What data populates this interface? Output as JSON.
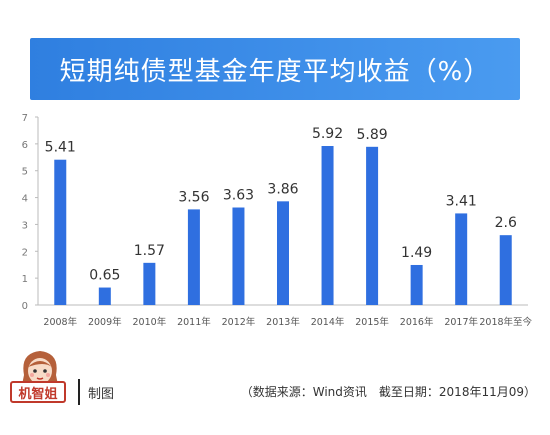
{
  "title": "短期纯债型基金年度平均收益（%）",
  "chart_data": {
    "type": "bar",
    "title": "短期纯债型基金年度平均收益（%）",
    "categories": [
      "2008年",
      "2009年",
      "2010年",
      "2011年",
      "2012年",
      "2013年",
      "2014年",
      "2015年",
      "2016年",
      "2017年",
      "2018年至今"
    ],
    "values": [
      5.41,
      0.65,
      1.57,
      3.56,
      3.63,
      3.86,
      5.92,
      5.89,
      1.49,
      3.41,
      2.6
    ],
    "value_labels": [
      "5.41",
      "0.65",
      "1.57",
      "3.56",
      "3.63",
      "3.86",
      "5.92",
      "5.89",
      "1.49",
      "3.41",
      "2.6"
    ],
    "yticks": [
      "0",
      "1",
      "2",
      "3",
      "4",
      "5",
      "6",
      "7"
    ],
    "ylim": [
      0,
      7
    ],
    "grid": false,
    "bar_color": "#2f6fe0"
  },
  "footer": {
    "brand": "机智姐",
    "made_by": "制图",
    "source": "（数据来源：Wind资讯　截至日期：2018年11月09）"
  },
  "colors": {
    "banner": "#3a8ae8",
    "axis": "#bbbbbb",
    "brand_red": "#c0392b"
  }
}
